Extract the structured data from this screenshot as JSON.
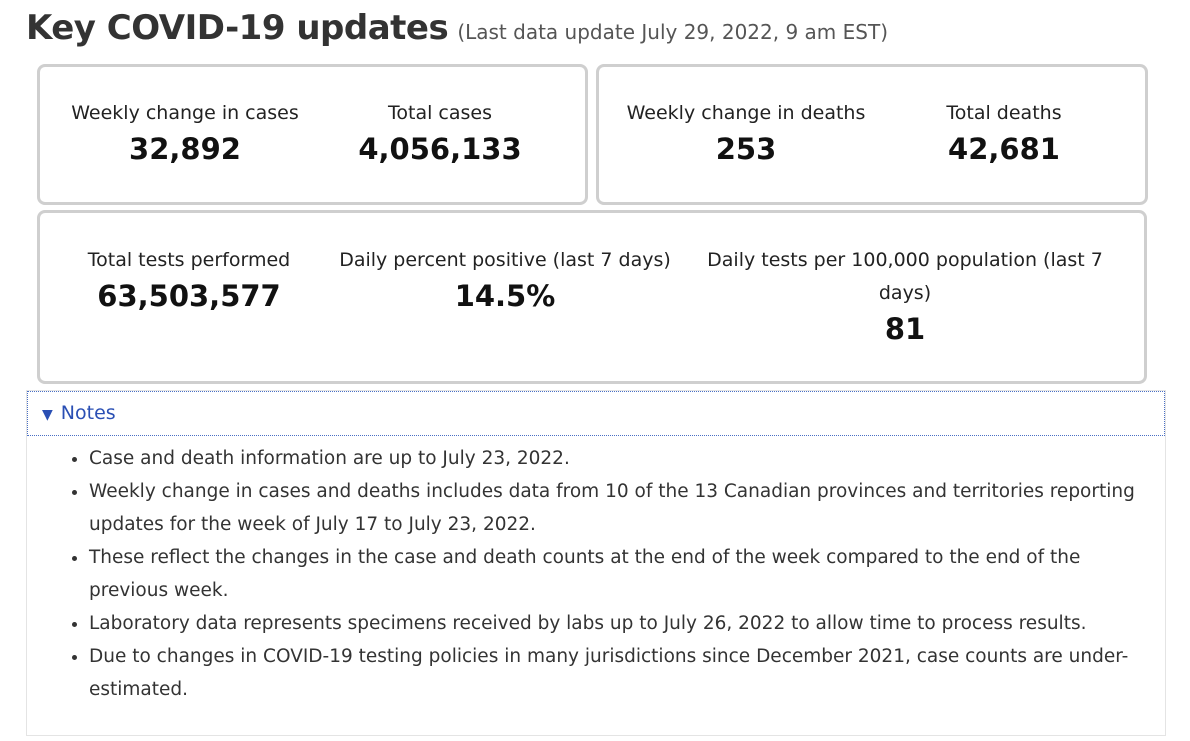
{
  "header": {
    "title": "Key COVID-19 updates",
    "subtitle": "(Last data update July 29, 2022, 9 am EST)"
  },
  "cases": {
    "weekly_label": "Weekly change in cases",
    "weekly_value": "32,892",
    "total_label": "Total cases",
    "total_value": "4,056,133"
  },
  "deaths": {
    "weekly_label": "Weekly change in deaths",
    "weekly_value": "253",
    "total_label": "Total deaths",
    "total_value": "42,681"
  },
  "tests": {
    "total_label": "Total tests performed",
    "total_value": "63,503,577",
    "positive_label": "Daily percent positive (last 7 days)",
    "positive_value": "14.5%",
    "per100k_label_line1": "Daily tests per 100,000 population (last 7",
    "per100k_label_line2": "days)",
    "per100k_value": "81"
  },
  "notes": {
    "toggle_label": "Notes",
    "items": [
      "Case and death information are up to July 23, 2022.",
      "Weekly change in cases and deaths includes data from 10 of the 13 Canadian provinces and territories reporting updates for the week of July 17 to July 23, 2022.",
      "These reflect the changes in the case and death counts at the end of the week compared to the end of the previous week.",
      "Laboratory data represents specimens received by labs up to July 26, 2022 to allow time to process results.",
      "Due to changes in COVID-19 testing policies in many jurisdictions since December 2021, case counts are under-estimated."
    ]
  }
}
